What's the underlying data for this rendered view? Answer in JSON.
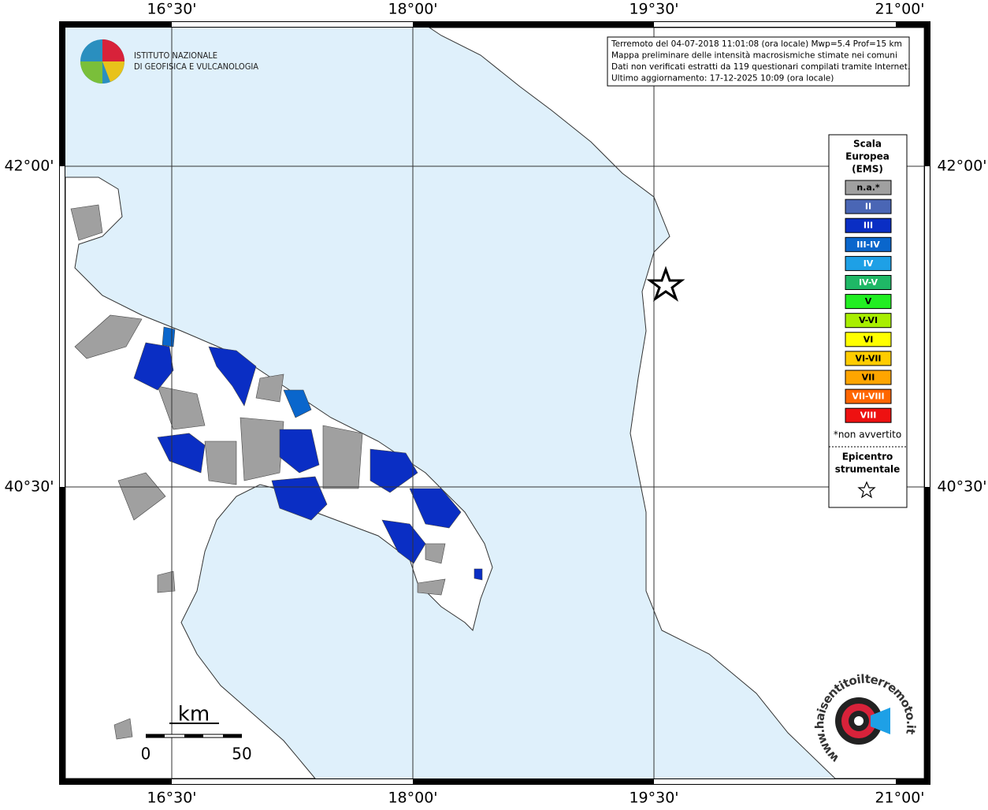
{
  "axes": {
    "top": [
      "16°30'",
      "18°00'",
      "19°30'",
      "21°00'"
    ],
    "bottom": [
      "16°30'",
      "18°00'",
      "19°30'",
      "21°00'"
    ],
    "left": [
      "42°00'",
      "40°30'"
    ],
    "right": [
      "42°00'",
      "40°30'"
    ]
  },
  "logo": {
    "line1": "ISTITUTO NAZIONALE",
    "line2": "DI GEOFISICA E VULCANOLOGIA"
  },
  "info": {
    "lines": [
      "Terremoto del 04-07-2018 11:01:08 (ora locale) Mwp=5.4 Prof=15 km",
      "Mappa preliminare delle intensità macrosismiche stimate nei comuni",
      "Dati non verificati estratti da 119 questionari compilati tramite Internet.",
      "Ultimo aggiornamento: 17-12-2025 10:09 (ora locale)"
    ]
  },
  "legend": {
    "title": [
      "Scala",
      "Europea",
      "(EMS)"
    ],
    "items": [
      {
        "label": "n.a.*",
        "color": "#a0a0a0"
      },
      {
        "label": "II",
        "color": "#4a66b5"
      },
      {
        "label": "III",
        "color": "#0a2ec4"
      },
      {
        "label": "III-IV",
        "color": "#0a66cc"
      },
      {
        "label": "IV",
        "color": "#1ea0e6"
      },
      {
        "label": "IV-V",
        "color": "#1fb866"
      },
      {
        "label": "V",
        "color": "#22ee22"
      },
      {
        "label": "V-VI",
        "color": "#a8ee00"
      },
      {
        "label": "VI",
        "color": "#ffff00"
      },
      {
        "label": "VI-VII",
        "color": "#ffcc00"
      },
      {
        "label": "VII",
        "color": "#ffa500"
      },
      {
        "label": "VII-VIII",
        "color": "#ff6600"
      },
      {
        "label": "VIII",
        "color": "#ee1111"
      }
    ],
    "note": "*non avvertito",
    "epicenter": [
      "Epicentro",
      "strumentale"
    ]
  },
  "scale": {
    "unit": "km",
    "min": 0,
    "max": 50
  },
  "watermark": {
    "text": "www.haisentitoilterremoto.it"
  }
}
